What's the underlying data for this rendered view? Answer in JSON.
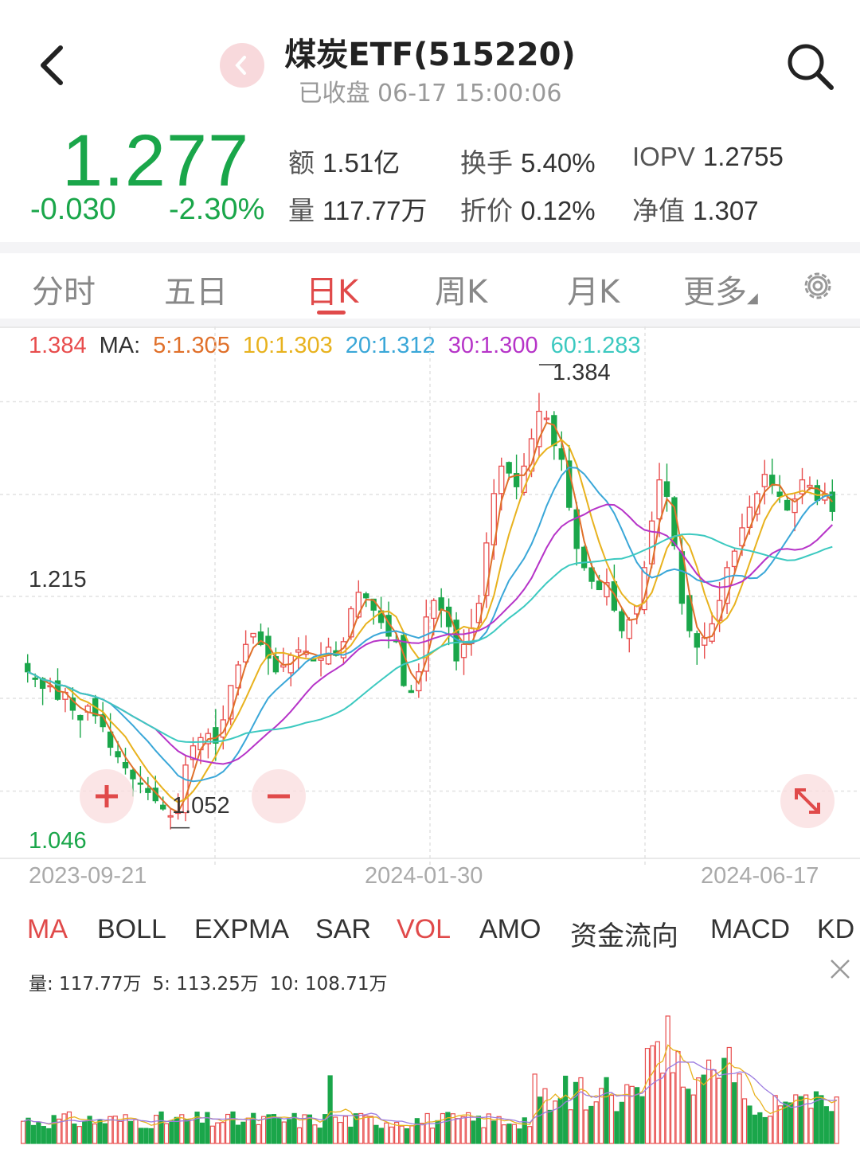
{
  "header": {
    "title": "煤炭ETF(515220)",
    "status": "已收盘 06-17 15:00:06"
  },
  "quote": {
    "price": "1.277",
    "change": "-0.030",
    "change_pct": "-2.30%",
    "stats": [
      {
        "label": "额",
        "value": "1.51亿"
      },
      {
        "label": "换手",
        "value": "5.40%"
      },
      {
        "label": "IOPV",
        "value": "1.2755"
      },
      {
        "label": "量",
        "value": "117.77万"
      },
      {
        "label": "折价",
        "value": "0.12%"
      },
      {
        "label": "净值",
        "value": "1.307"
      }
    ]
  },
  "tabs": [
    "分时",
    "五日",
    "日K",
    "周K",
    "月K",
    "更多"
  ],
  "active_tab": "日K",
  "ma_legend": {
    "high": "1.384",
    "ma_label": "MA:",
    "items": [
      {
        "text": "5:1.305",
        "color": "#e0702a"
      },
      {
        "text": "10:1.303",
        "color": "#e8b21e"
      },
      {
        "text": "20:1.312",
        "color": "#3aa7d8"
      },
      {
        "text": "30:1.300",
        "color": "#b634c8"
      },
      {
        "text": "60:1.283",
        "color": "#3cc9c0"
      }
    ]
  },
  "chart_labels": {
    "max_label": "1.384",
    "min_label": "1.052",
    "y_top": "1.384",
    "y_mid": "1.215",
    "y_bottom": "1.046"
  },
  "dates": [
    "2023-09-21",
    "2024-01-30",
    "2024-06-17"
  ],
  "indicators": [
    "MA",
    "BOLL",
    "EXPMA",
    "SAR",
    "VOL",
    "AMO",
    "资金流向",
    "MACD",
    "KD"
  ],
  "active_indicators": [
    "MA",
    "VOL"
  ],
  "vol_legend": {
    "vol": "量: 117.77万",
    "ma5": "5: 113.25万",
    "ma10": "10: 108.71万"
  },
  "colors": {
    "up": "#e84d4d",
    "down": "#1aa64a",
    "accent": "#e04a4a"
  },
  "icons": [
    "back-arrow-icon",
    "prev-circle-icon",
    "search-icon",
    "settings-gear-icon",
    "zoom-in-icon",
    "zoom-out-icon",
    "expand-icon",
    "close-icon"
  ],
  "chart_data": {
    "type": "candlestick",
    "range": {
      "start": "2023-09-21",
      "end": "2024-06-17"
    },
    "ylim": [
      1.046,
      1.384
    ],
    "high": 1.384,
    "low": 1.052,
    "last_close": 1.277,
    "close_series": [
      1.16,
      1.155,
      1.148,
      1.15,
      1.14,
      1.145,
      1.132,
      1.125,
      1.135,
      1.128,
      1.12,
      1.105,
      1.098,
      1.09,
      1.082,
      1.078,
      1.072,
      1.066,
      1.06,
      1.055,
      1.058,
      1.092,
      1.106,
      1.112,
      1.115,
      1.108,
      1.125,
      1.15,
      1.165,
      1.18,
      1.188,
      1.18,
      1.17,
      1.16,
      1.165,
      1.172,
      1.176,
      1.175,
      1.168,
      1.17,
      1.178,
      1.172,
      1.182,
      1.206,
      1.218,
      1.214,
      1.205,
      1.196,
      1.186,
      1.182,
      1.15,
      1.145,
      1.16,
      1.2,
      1.212,
      1.205,
      1.193,
      1.168,
      1.18,
      1.192,
      1.21,
      1.254,
      1.29,
      1.31,
      1.305,
      1.295,
      1.31,
      1.33,
      1.35,
      1.345,
      1.325,
      1.315,
      1.28,
      1.25,
      1.236,
      1.226,
      1.22,
      1.225,
      1.205,
      1.19,
      1.198,
      1.208,
      1.236,
      1.27,
      1.3,
      1.288,
      1.252,
      1.21,
      1.19,
      1.178,
      1.185,
      1.195,
      1.212,
      1.236,
      1.248,
      1.265,
      1.28,
      1.29,
      1.304,
      1.296,
      1.288,
      1.278,
      1.286,
      1.3,
      1.296,
      1.285,
      1.29,
      1.277
    ],
    "ma_series": [
      "MA5",
      "MA10",
      "MA20",
      "MA30",
      "MA60"
    ],
    "volume": {
      "unit": "万",
      "last": 117.77,
      "ma5": 113.25,
      "ma10": 108.71
    }
  }
}
